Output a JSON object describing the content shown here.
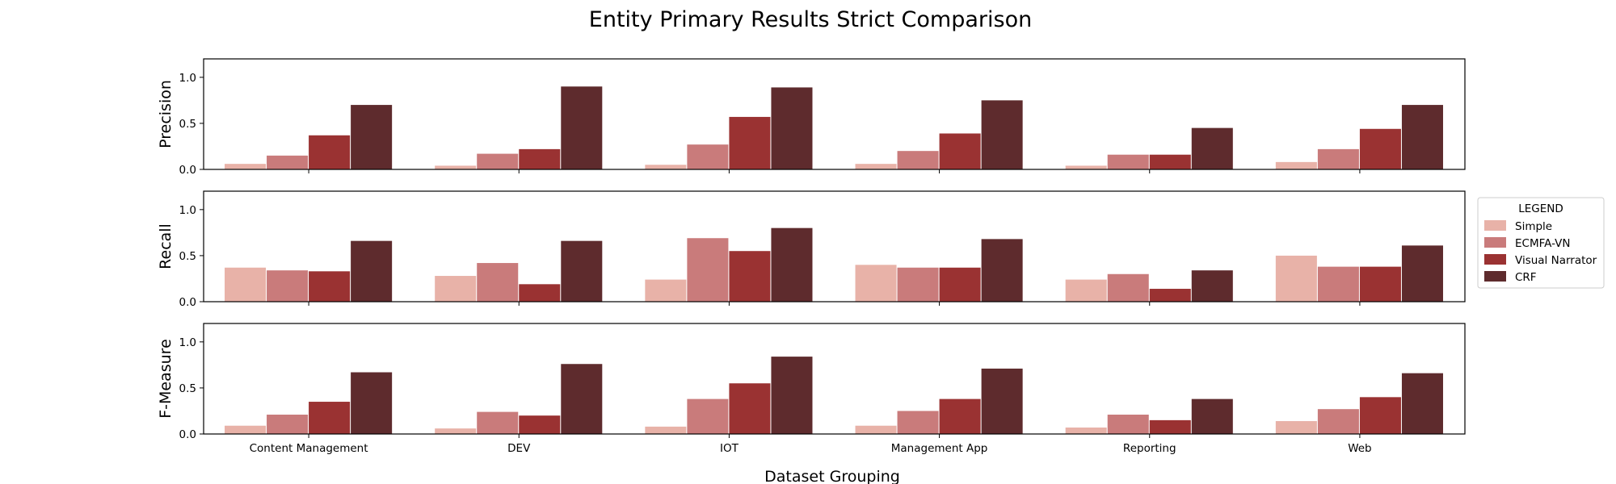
{
  "chart_data": {
    "type": "bar",
    "title": "Entity Primary Results Strict Comparison",
    "xlabel": "Dataset Grouping",
    "categories": [
      "Content Management",
      "DEV",
      "IOT",
      "Management App",
      "Reporting",
      "Web"
    ],
    "ylim": [
      0,
      1.2
    ],
    "yticks": [
      "0.0",
      "0.5",
      "1.0"
    ],
    "legend": {
      "title": "LEGEND",
      "placement": "center-right, outside plots"
    },
    "series": [
      {
        "name": "Simple",
        "color": "#e8b2a8"
      },
      {
        "name": "ECMFA-VN",
        "color": "#c97b7b"
      },
      {
        "name": "Visual Narrator",
        "color": "#9a3232"
      },
      {
        "name": "CRF",
        "color": "#5e2b2d"
      }
    ],
    "panels": [
      {
        "ylabel": "Precision",
        "values": [
          [
            0.06,
            0.04,
            0.05,
            0.06,
            0.04,
            0.08
          ],
          [
            0.15,
            0.17,
            0.27,
            0.2,
            0.16,
            0.22
          ],
          [
            0.37,
            0.22,
            0.57,
            0.39,
            0.16,
            0.44
          ],
          [
            0.7,
            0.9,
            0.89,
            0.75,
            0.45,
            0.7
          ]
        ]
      },
      {
        "ylabel": "Recall",
        "values": [
          [
            0.37,
            0.28,
            0.24,
            0.4,
            0.24,
            0.5
          ],
          [
            0.34,
            0.42,
            0.69,
            0.37,
            0.3,
            0.38
          ],
          [
            0.33,
            0.19,
            0.55,
            0.37,
            0.14,
            0.38
          ],
          [
            0.66,
            0.66,
            0.8,
            0.68,
            0.34,
            0.61
          ]
        ]
      },
      {
        "ylabel": "F-Measure",
        "values": [
          [
            0.09,
            0.06,
            0.08,
            0.09,
            0.07,
            0.14
          ],
          [
            0.21,
            0.24,
            0.38,
            0.25,
            0.21,
            0.27
          ],
          [
            0.35,
            0.2,
            0.55,
            0.38,
            0.15,
            0.4
          ],
          [
            0.67,
            0.76,
            0.84,
            0.71,
            0.38,
            0.66
          ]
        ]
      }
    ]
  }
}
